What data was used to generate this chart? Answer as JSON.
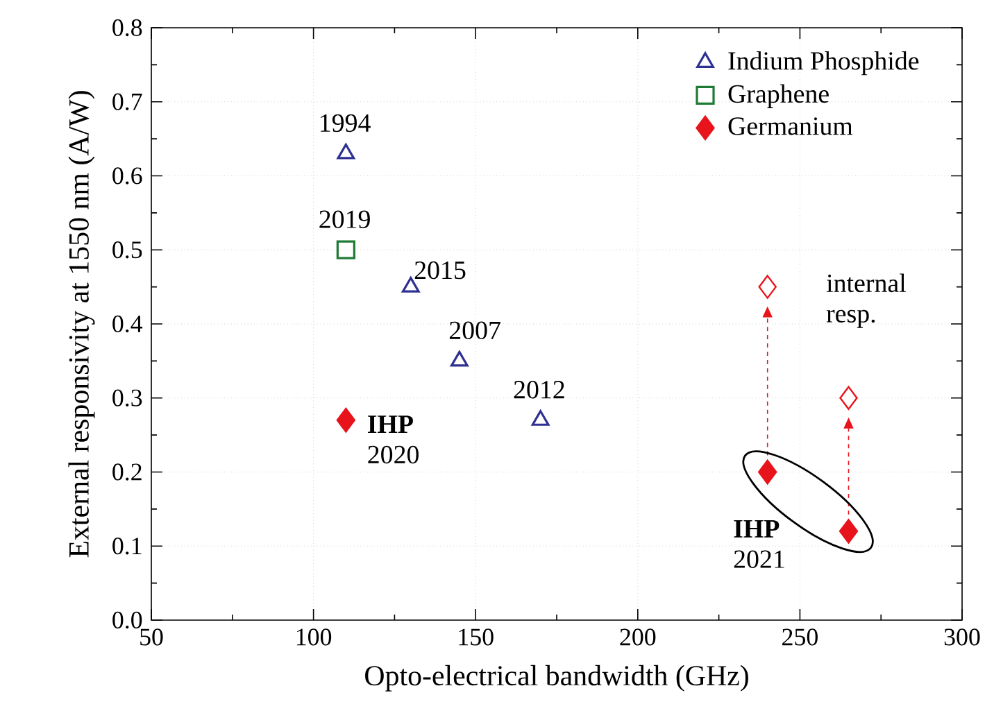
{
  "chart_data": {
    "type": "scatter",
    "xlabel": "Opto-electrical bandwidth (GHz)",
    "ylabel": "External responsivity at 1550 nm (A/W)",
    "xlim": [
      50,
      300
    ],
    "xticks": [
      50,
      100,
      150,
      200,
      250,
      300
    ],
    "ylim": [
      0,
      0.8
    ],
    "yticks": [
      {
        "value": 0,
        "label": "0.0"
      },
      0.1,
      0.2,
      0.3,
      0.4,
      0.5,
      0.6,
      0.7,
      0.8
    ],
    "grid": true,
    "legend": "top right",
    "series": [
      {
        "name": "Indium Phosphide",
        "color": "#2e3192",
        "marker": "triangle",
        "x": [
          110,
          130,
          145,
          170
        ],
        "values": [
          0.63,
          0.45,
          0.35,
          0.27
        ]
      },
      {
        "name": "Graphene",
        "color": "#1e7b34",
        "marker": "square",
        "x": [
          110
        ],
        "values": [
          0.5
        ]
      },
      {
        "name": "Germanium",
        "color": "#e8141b",
        "marker": "diamond",
        "x": [
          110,
          240,
          265
        ],
        "values": [
          0.27,
          0.2,
          0.12
        ]
      },
      {
        "color": "#e8141b",
        "marker": "diamond",
        "x": [
          240,
          265
        ],
        "values": [
          0.45,
          0.3
        ]
      }
    ],
    "annotations": [
      {
        "text": "1994",
        "x": 110,
        "y": 0.63
      },
      {
        "text": "2019",
        "x": 110,
        "y": 0.5
      },
      {
        "text": "2015",
        "x": 130,
        "y": 0.45
      },
      {
        "text": "2007",
        "x": 145,
        "y": 0.35
      },
      {
        "text": "2012",
        "x": 170,
        "y": 0.27
      },
      {
        "text": "**IHP** 2020",
        "x": 110,
        "y": 0.27
      },
      {
        "text": "**IHP** 2021",
        "x": 240,
        "y": 0.2
      },
      {
        "text": "internal resp.",
        "x": 240,
        "y": 0.45
      }
    ]
  }
}
